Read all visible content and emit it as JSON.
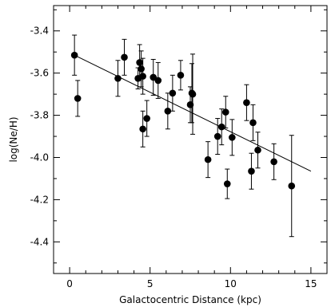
{
  "chart_data": {
    "type": "scatter",
    "title": "",
    "xlabel": "Galactocentric Distance (kpc)",
    "ylabel": "log(Ne/H)",
    "xlim": [
      -1,
      16
    ],
    "ylim": [
      -4.55,
      -3.28
    ],
    "x_ticks": [
      0,
      5,
      10,
      15
    ],
    "x_tick_labels": [
      "0",
      "5",
      "10",
      "15"
    ],
    "y_ticks": [
      -3.4,
      -3.6,
      -3.8,
      -4.0,
      -4.2,
      -4.4
    ],
    "y_tick_labels": [
      "-3.4",
      "-3.6",
      "-3.8",
      "-4.0",
      "-4.2",
      "-4.4"
    ],
    "grid": false,
    "series": [
      {
        "points": [
          {
            "x": 0.3,
            "y": -3.515,
            "err": 0.095
          },
          {
            "x": 0.5,
            "y": -3.72,
            "err": 0.085
          },
          {
            "x": 3.0,
            "y": -3.625,
            "err": 0.085
          },
          {
            "x": 3.4,
            "y": -3.525,
            "err": 0.085
          },
          {
            "x": 4.25,
            "y": -3.625,
            "err": 0.05
          },
          {
            "x": 4.35,
            "y": -3.55,
            "err": 0.085
          },
          {
            "x": 4.45,
            "y": -3.58,
            "err": 0.085
          },
          {
            "x": 4.55,
            "y": -3.615,
            "err": 0.085
          },
          {
            "x": 4.55,
            "y": -3.865,
            "err": 0.085
          },
          {
            "x": 4.8,
            "y": -3.815,
            "err": 0.085
          },
          {
            "x": 5.2,
            "y": -3.62,
            "err": 0.085
          },
          {
            "x": 5.5,
            "y": -3.635,
            "err": 0.085
          },
          {
            "x": 6.1,
            "y": -3.78,
            "err": 0.085
          },
          {
            "x": 6.4,
            "y": -3.695,
            "err": 0.085
          },
          {
            "x": 6.9,
            "y": -3.61,
            "err": 0.07
          },
          {
            "x": 7.5,
            "y": -3.75,
            "err": 0.085
          },
          {
            "x": 7.6,
            "y": -3.695,
            "err": 0.14
          },
          {
            "x": 7.65,
            "y": -3.7,
            "err": 0.19
          },
          {
            "x": 8.6,
            "y": -4.01,
            "err": 0.085
          },
          {
            "x": 9.2,
            "y": -3.9,
            "err": 0.085
          },
          {
            "x": 9.45,
            "y": -3.855,
            "err": 0.085
          },
          {
            "x": 9.7,
            "y": -3.785,
            "err": 0.075
          },
          {
            "x": 9.8,
            "y": -4.125,
            "err": 0.07
          },
          {
            "x": 10.1,
            "y": -3.905,
            "err": 0.085
          },
          {
            "x": 11.0,
            "y": -3.74,
            "err": 0.085
          },
          {
            "x": 11.3,
            "y": -4.065,
            "err": 0.085
          },
          {
            "x": 11.4,
            "y": -3.835,
            "err": 0.085
          },
          {
            "x": 11.7,
            "y": -3.965,
            "err": 0.085
          },
          {
            "x": 12.7,
            "y": -4.02,
            "err": 0.085
          },
          {
            "x": 13.8,
            "y": -4.135,
            "err": 0.24
          }
        ]
      }
    ],
    "fit_line": {
      "x": [
        0.3,
        15.0
      ],
      "y": [
        -3.515,
        -4.065
      ]
    }
  }
}
